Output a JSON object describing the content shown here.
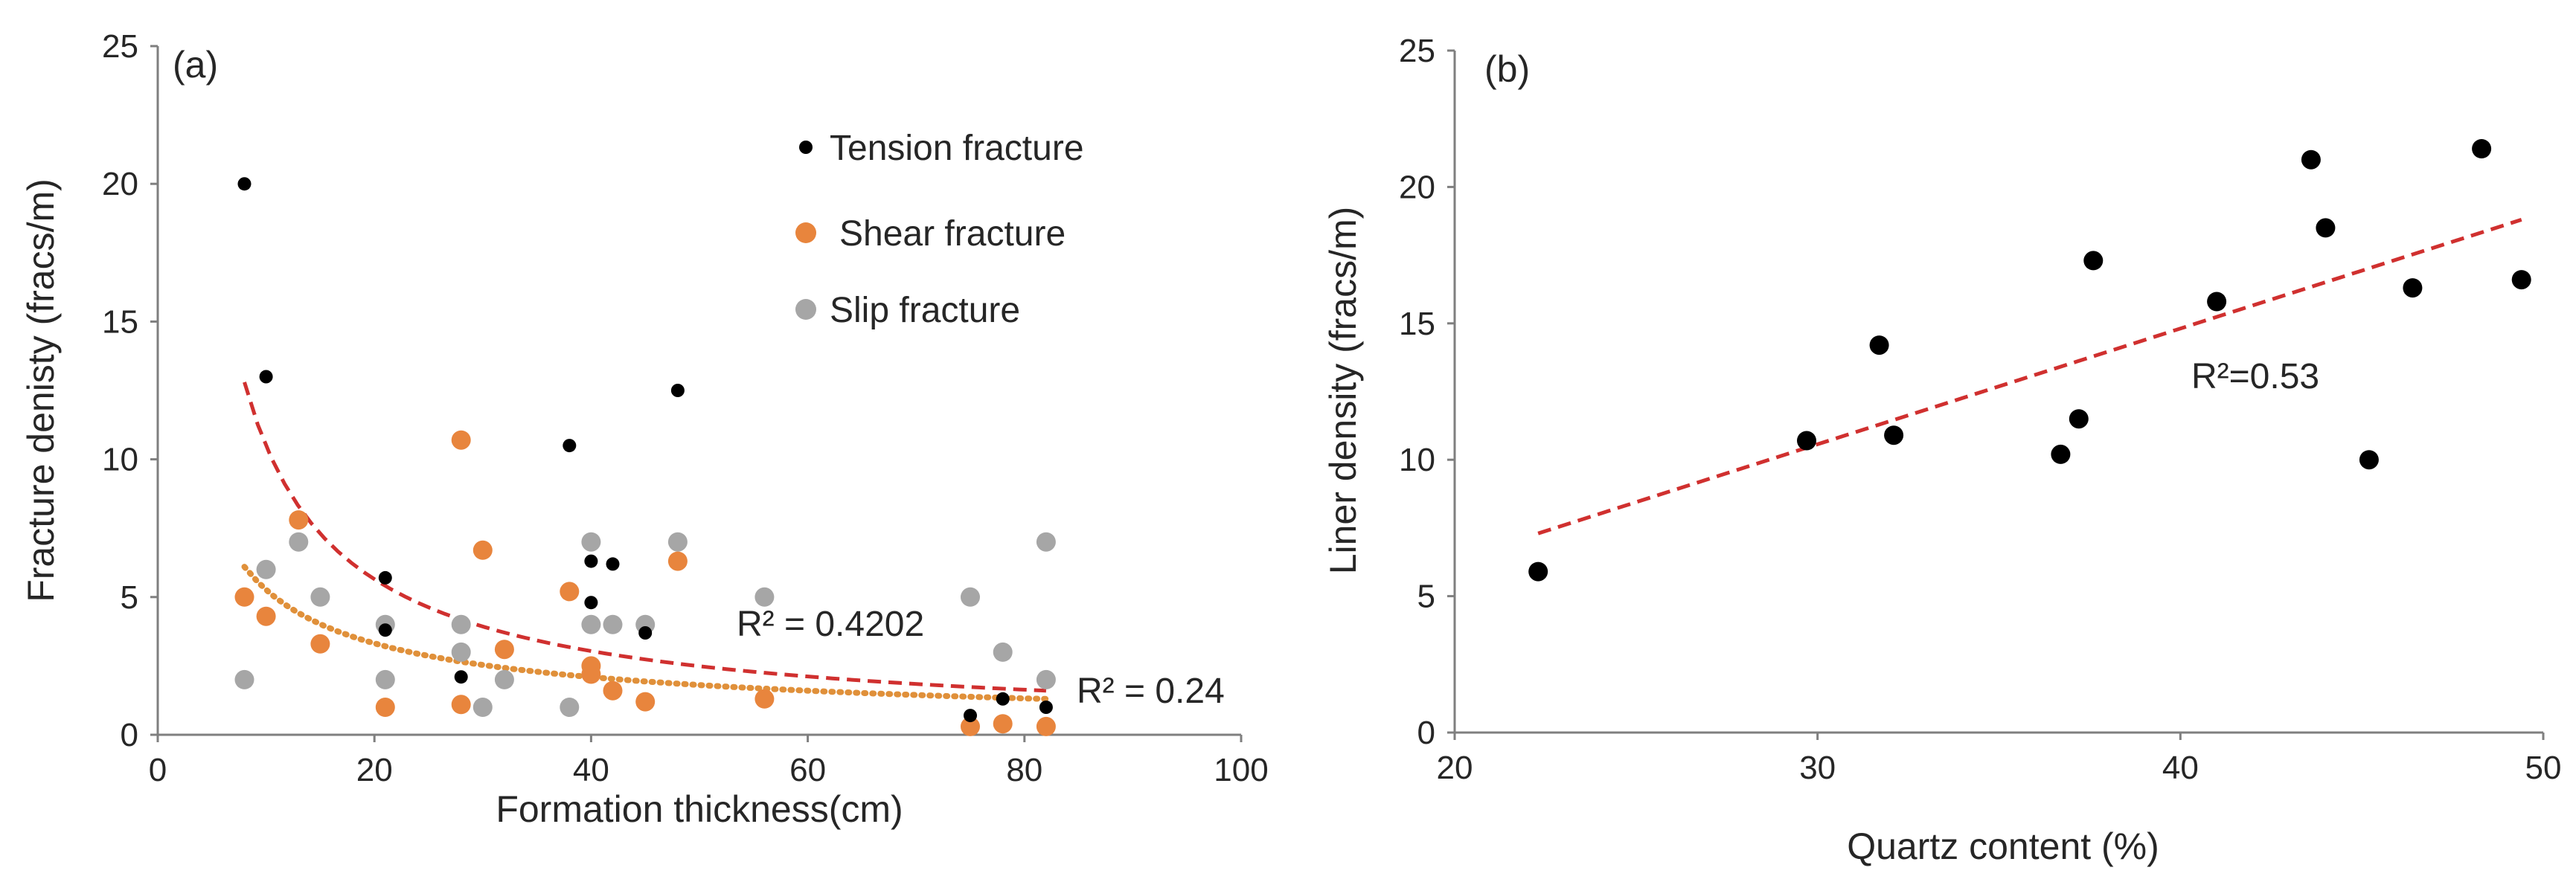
{
  "chart_data": [
    {
      "type": "scatter",
      "panel_label": "(a)",
      "xlabel": "Formation thickness(cm)",
      "ylabel": "Fracture  denisty (fracs/m)",
      "xlim": [
        0,
        100
      ],
      "ylim": [
        0,
        25
      ],
      "xticks": [
        "0",
        "20",
        "40",
        "60",
        "80",
        "100"
      ],
      "yticks": [
        "0",
        "5",
        "10",
        "15",
        "20",
        "25"
      ],
      "legend_position": "top-right",
      "series": [
        {
          "name": "Slip fracture",
          "color": "#a6a6a6",
          "points": [
            [
              8,
              2
            ],
            [
              10,
              6
            ],
            [
              13,
              7
            ],
            [
              15,
              5
            ],
            [
              21,
              2
            ],
            [
              21,
              4
            ],
            [
              28,
              3
            ],
            [
              28,
              4
            ],
            [
              30,
              1
            ],
            [
              32,
              2
            ],
            [
              38,
              1
            ],
            [
              40,
              4
            ],
            [
              40,
              7
            ],
            [
              42,
              4
            ],
            [
              45,
              4
            ],
            [
              48,
              7
            ],
            [
              56,
              5
            ],
            [
              75,
              5
            ],
            [
              78,
              3
            ],
            [
              82,
              2
            ],
            [
              82,
              7
            ]
          ]
        },
        {
          "name": "Shear fracture",
          "color": "#e8853d",
          "points": [
            [
              8,
              5
            ],
            [
              10,
              4.3
            ],
            [
              13,
              7.8
            ],
            [
              15,
              3.3
            ],
            [
              21,
              1
            ],
            [
              28,
              10.7
            ],
            [
              28,
              1.1
            ],
            [
              30,
              6.7
            ],
            [
              32,
              3.1
            ],
            [
              38,
              5.2
            ],
            [
              40,
              2.2
            ],
            [
              40,
              2.5
            ],
            [
              42,
              1.6
            ],
            [
              45,
              1.2
            ],
            [
              48,
              6.3
            ],
            [
              56,
              1.3
            ],
            [
              75,
              0.3
            ],
            [
              78,
              0.4
            ],
            [
              82,
              0.3
            ]
          ]
        },
        {
          "name": "Tension fracture",
          "color": "#000000",
          "points": [
            [
              8,
              20
            ],
            [
              10,
              13
            ],
            [
              21,
              5.7
            ],
            [
              21,
              3.8
            ],
            [
              28,
              2.1
            ],
            [
              38,
              10.5
            ],
            [
              40,
              6.3
            ],
            [
              40,
              4.8
            ],
            [
              42,
              6.2
            ],
            [
              45,
              3.7
            ],
            [
              48,
              12.5
            ],
            [
              75,
              0.7
            ],
            [
              78,
              1.3
            ],
            [
              82,
              1
            ]
          ]
        }
      ],
      "trendlines": [
        {
          "series": "Tension fracture",
          "model": "power",
          "x_range": [
            8,
            82
          ],
          "y_start": 12.8,
          "y_end": 1.6,
          "color": "#d0302f",
          "label": "R² = 0.4202"
        },
        {
          "series": "Shear fracture",
          "model": "power",
          "x_range": [
            8,
            82
          ],
          "y_start": 6.1,
          "y_end": 1.3,
          "color": "#e0903a",
          "label": "R² = 0.24"
        }
      ]
    },
    {
      "type": "scatter",
      "panel_label": "(b)",
      "xlabel": "Quartz content (%)",
      "ylabel": "Liner density (fracs/m)",
      "xlim": [
        20,
        50
      ],
      "ylim": [
        0,
        25
      ],
      "xticks": [
        "20",
        "30",
        "40",
        "50"
      ],
      "yticks": [
        "0",
        "5",
        "10",
        "15",
        "20",
        "25"
      ],
      "series": [
        {
          "name": "Liner density",
          "color": "#000000",
          "points": [
            [
              22.3,
              5.9
            ],
            [
              29.7,
              10.7
            ],
            [
              31.7,
              14.2
            ],
            [
              32.1,
              10.9
            ],
            [
              36.7,
              10.2
            ],
            [
              37.2,
              11.5
            ],
            [
              37.6,
              17.3
            ],
            [
              41,
              15.8
            ],
            [
              43.6,
              21
            ],
            [
              44,
              18.5
            ],
            [
              45.2,
              10
            ],
            [
              46.4,
              16.3
            ],
            [
              48.3,
              21.4
            ],
            [
              49.4,
              16.6
            ]
          ]
        }
      ],
      "trendlines": [
        {
          "series": "Liner density",
          "model": "linear",
          "x_range": [
            22.3,
            49.4
          ],
          "y_start": 7.3,
          "y_end": 18.8,
          "color": "#d0302f",
          "label": "R²=0.53"
        }
      ]
    }
  ]
}
